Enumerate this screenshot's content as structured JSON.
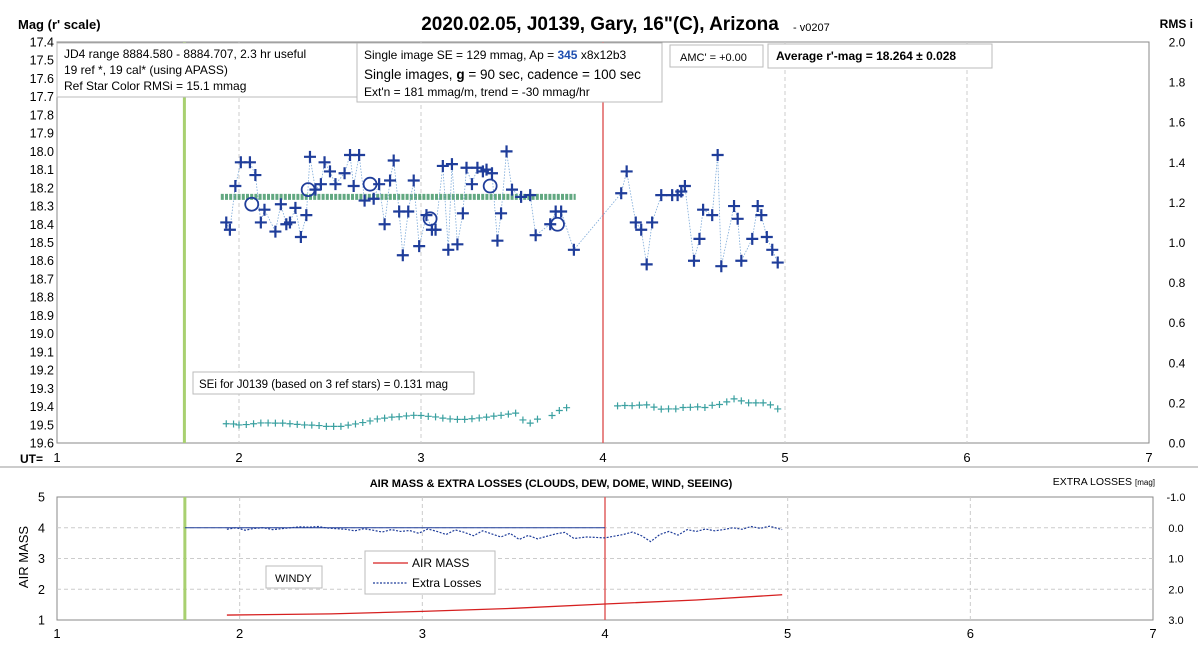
{
  "title": "2020.02.05, J0139, Gary, 16\"(C), Arizona",
  "version": "- v0207",
  "colors": {
    "mag_marker": "#1f3d9a",
    "trend": "#2e8b57",
    "sei_marker": "#3aa0a0",
    "airmass_line": "#d62020",
    "extra_losses": "#1f3d9a",
    "meridian": "#e06060",
    "start_marker": "#a8d070",
    "grid": "#cccccc"
  },
  "info_boxes": {
    "jd_range": "JD4 range 8884.580 - 8884.707, 2.3 hr useful",
    "ref_cal": "19 ref *, 19 cal* (using APASS)",
    "ref_color_rms": "Ref Star Color RMSi = 15.1 mmag",
    "single_se_prefix": "Single image SE = 129 mmag, Ap = ",
    "aperture": "345",
    "aperture_suffix": " x8x12b3",
    "single_images": "Single images, ",
    "filter_letter": "g",
    "exposure": " = 90 sec, cadence = 100 sec",
    "extinction": "Ext'n = 181 mmag/m, trend = -30 mmag/hr",
    "amc": "AMC' = +0.00",
    "average": "Average r'-mag =  18.264 ± 0.028",
    "sei": "SEi for J0139 (based on 3 ref stars) = 0.131 mag",
    "windy": "WINDY"
  },
  "chart_data": [
    {
      "type": "scatter",
      "title": "2020.02.05, J0139, Gary, 16\"(C), Arizona",
      "ylabel": "Mag (r' scale)",
      "y2label": "RMS i",
      "xlabel": "UT=",
      "xlim": [
        1,
        7
      ],
      "ylim": [
        17.4,
        19.6
      ],
      "y_inverted": true,
      "y2lim": [
        0,
        2.0
      ],
      "x_ticks": [
        "1",
        "2",
        "3",
        "4",
        "5",
        "6",
        "7"
      ],
      "y_ticks": [
        "17.4",
        "17.5",
        "17.6",
        "17.7",
        "17.8",
        "17.9",
        "18.0",
        "18.1",
        "18.2",
        "18.3",
        "18.4",
        "18.5",
        "18.6",
        "18.7",
        "18.8",
        "18.9",
        "19.0",
        "19.1",
        "19.2",
        "19.3",
        "19.4",
        "19.5",
        "19.6"
      ],
      "y2_ticks": [
        "0.0",
        "0.2",
        "0.4",
        "0.6",
        "0.8",
        "1.0",
        "1.2",
        "1.4",
        "1.6",
        "1.8",
        "2.0"
      ],
      "grid": true,
      "start_marker_x": 1.7,
      "meridian_x": 4.0,
      "trend_line": {
        "x": [
          1.9,
          3.85
        ],
        "y": 18.25
      },
      "series": [
        {
          "kind": "single-image-mag",
          "points": [
            [
              1.93,
              18.39
            ],
            [
              1.95,
              18.43
            ],
            [
              1.98,
              18.19
            ],
            [
              2.01,
              18.06
            ],
            [
              2.06,
              18.06
            ],
            [
              2.09,
              18.13
            ],
            [
              2.12,
              18.39
            ],
            [
              2.14,
              18.32
            ],
            [
              2.2,
              18.44
            ],
            [
              2.23,
              18.29
            ],
            [
              2.26,
              18.4
            ],
            [
              2.28,
              18.39
            ],
            [
              2.31,
              18.31
            ],
            [
              2.34,
              18.47
            ],
            [
              2.37,
              18.35
            ],
            [
              2.39,
              18.03
            ],
            [
              2.42,
              18.21
            ],
            [
              2.45,
              18.18
            ],
            [
              2.47,
              18.06
            ],
            [
              2.5,
              18.11
            ],
            [
              2.53,
              18.18
            ],
            [
              2.58,
              18.12
            ],
            [
              2.61,
              18.02
            ],
            [
              2.63,
              18.19
            ],
            [
              2.66,
              18.02
            ],
            [
              2.69,
              18.27
            ],
            [
              2.74,
              18.26
            ],
            [
              2.77,
              18.18
            ],
            [
              2.8,
              18.4
            ],
            [
              2.83,
              18.16
            ],
            [
              2.85,
              18.05
            ],
            [
              2.88,
              18.33
            ],
            [
              2.9,
              18.57
            ],
            [
              2.93,
              18.33
            ],
            [
              2.96,
              18.16
            ],
            [
              2.99,
              18.52
            ],
            [
              3.03,
              18.35
            ],
            [
              3.06,
              18.43
            ],
            [
              3.08,
              18.43
            ],
            [
              3.12,
              18.08
            ],
            [
              3.15,
              18.54
            ],
            [
              3.17,
              18.07
            ],
            [
              3.2,
              18.51
            ],
            [
              3.23,
              18.34
            ],
            [
              3.25,
              18.09
            ],
            [
              3.28,
              18.18
            ],
            [
              3.31,
              18.09
            ],
            [
              3.34,
              18.11
            ],
            [
              3.36,
              18.1
            ],
            [
              3.39,
              18.12
            ],
            [
              3.42,
              18.49
            ],
            [
              3.44,
              18.34
            ],
            [
              3.47,
              18.0
            ],
            [
              3.5,
              18.21
            ],
            [
              3.55,
              18.25
            ],
            [
              3.6,
              18.24
            ],
            [
              3.63,
              18.46
            ],
            [
              3.71,
              18.4
            ],
            [
              3.74,
              18.33
            ],
            [
              3.77,
              18.33
            ],
            [
              3.84,
              18.54
            ],
            [
              4.1,
              18.23
            ],
            [
              4.13,
              18.11
            ],
            [
              4.18,
              18.39
            ],
            [
              4.21,
              18.43
            ],
            [
              4.24,
              18.62
            ],
            [
              4.27,
              18.39
            ],
            [
              4.32,
              18.24
            ],
            [
              4.38,
              18.24
            ],
            [
              4.41,
              18.24
            ],
            [
              4.43,
              18.22
            ],
            [
              4.45,
              18.19
            ],
            [
              4.5,
              18.6
            ],
            [
              4.53,
              18.48
            ],
            [
              4.55,
              18.32
            ],
            [
              4.6,
              18.35
            ],
            [
              4.63,
              18.02
            ],
            [
              4.65,
              18.63
            ],
            [
              4.72,
              18.3
            ],
            [
              4.74,
              18.37
            ],
            [
              4.76,
              18.6
            ],
            [
              4.82,
              18.48
            ],
            [
              4.85,
              18.3
            ],
            [
              4.87,
              18.35
            ],
            [
              4.9,
              18.47
            ],
            [
              4.93,
              18.54
            ],
            [
              4.96,
              18.61
            ]
          ]
        },
        {
          "kind": "averaged-mag",
          "points": [
            [
              2.07,
              18.29
            ],
            [
              2.38,
              18.21
            ],
            [
              2.72,
              18.18
            ],
            [
              3.05,
              18.37
            ],
            [
              3.38,
              18.19
            ],
            [
              3.75,
              18.4
            ]
          ]
        },
        {
          "kind": "sei-rms",
          "axis": "y2",
          "points": [
            [
              1.93,
              0.096
            ],
            [
              1.97,
              0.095
            ],
            [
              2.0,
              0.09
            ],
            [
              2.04,
              0.092
            ],
            [
              2.08,
              0.096
            ],
            [
              2.12,
              0.1
            ],
            [
              2.16,
              0.1
            ],
            [
              2.2,
              0.099
            ],
            [
              2.24,
              0.099
            ],
            [
              2.28,
              0.096
            ],
            [
              2.32,
              0.093
            ],
            [
              2.36,
              0.09
            ],
            [
              2.4,
              0.089
            ],
            [
              2.44,
              0.087
            ],
            [
              2.48,
              0.083
            ],
            [
              2.52,
              0.083
            ],
            [
              2.56,
              0.083
            ],
            [
              2.6,
              0.089
            ],
            [
              2.64,
              0.095
            ],
            [
              2.68,
              0.102
            ],
            [
              2.72,
              0.11
            ],
            [
              2.76,
              0.12
            ],
            [
              2.8,
              0.124
            ],
            [
              2.84,
              0.129
            ],
            [
              2.88,
              0.131
            ],
            [
              2.92,
              0.135
            ],
            [
              2.96,
              0.138
            ],
            [
              3.0,
              0.137
            ],
            [
              3.04,
              0.133
            ],
            [
              3.08,
              0.13
            ],
            [
              3.12,
              0.124
            ],
            [
              3.16,
              0.12
            ],
            [
              3.2,
              0.118
            ],
            [
              3.24,
              0.118
            ],
            [
              3.28,
              0.121
            ],
            [
              3.32,
              0.125
            ],
            [
              3.36,
              0.129
            ],
            [
              3.4,
              0.134
            ],
            [
              3.44,
              0.138
            ],
            [
              3.48,
              0.144
            ],
            [
              3.52,
              0.149
            ],
            [
              3.56,
              0.115
            ],
            [
              3.6,
              0.099
            ],
            [
              3.64,
              0.119
            ],
            [
              3.72,
              0.137
            ],
            [
              3.76,
              0.162
            ],
            [
              3.8,
              0.176
            ],
            [
              4.08,
              0.185
            ],
            [
              4.12,
              0.187
            ],
            [
              4.16,
              0.186
            ],
            [
              4.2,
              0.189
            ],
            [
              4.24,
              0.19
            ],
            [
              4.28,
              0.179
            ],
            [
              4.32,
              0.169
            ],
            [
              4.36,
              0.17
            ],
            [
              4.4,
              0.17
            ],
            [
              4.44,
              0.177
            ],
            [
              4.48,
              0.178
            ],
            [
              4.52,
              0.18
            ],
            [
              4.56,
              0.177
            ],
            [
              4.6,
              0.188
            ],
            [
              4.64,
              0.192
            ],
            [
              4.68,
              0.205
            ],
            [
              4.72,
              0.22
            ],
            [
              4.76,
              0.21
            ],
            [
              4.8,
              0.2
            ],
            [
              4.84,
              0.2
            ],
            [
              4.88,
              0.2
            ],
            [
              4.92,
              0.19
            ],
            [
              4.96,
              0.17
            ]
          ]
        }
      ]
    },
    {
      "type": "line",
      "title": "AIR MASS & EXTRA LOSSES (CLOUDS, DEW, DOME, WIND, SEEING)",
      "ylabel": "AIR MASS",
      "y2label": "EXTRA LOSSES",
      "y2unit": "[mag]",
      "xlim": [
        1,
        7
      ],
      "ylim": [
        1,
        5
      ],
      "y2lim": [
        -1.0,
        3.0
      ],
      "y2_inverted": true,
      "x_ticks": [
        "1",
        "2",
        "3",
        "4",
        "5",
        "6",
        "7"
      ],
      "y_ticks": [
        "1",
        "2",
        "3",
        "4",
        "5"
      ],
      "y2_ticks": [
        "-1.0",
        "0.0",
        "1.0",
        "2.0",
        "3.0"
      ],
      "grid": true,
      "start_marker_x": 1.7,
      "meridian_x": 4.0,
      "legend": {
        "position": "center-left",
        "entries": [
          "AIR MASS",
          "Extra Losses"
        ]
      },
      "zero_reference_line": {
        "x": [
          1.7,
          4.0
        ],
        "y": 4.0
      },
      "series": [
        {
          "name": "AIR MASS",
          "x": [
            1.93,
            2.5,
            3.0,
            3.5,
            4.0,
            4.5,
            4.97
          ],
          "values": [
            1.16,
            1.2,
            1.28,
            1.38,
            1.52,
            1.65,
            1.82
          ]
        },
        {
          "name": "Extra Losses",
          "x": [
            1.93,
            1.98,
            2.03,
            2.08,
            2.13,
            2.18,
            2.23,
            2.28,
            2.33,
            2.38,
            2.43,
            2.48,
            2.53,
            2.58,
            2.63,
            2.68,
            2.73,
            2.78,
            2.83,
            2.88,
            2.93,
            2.98,
            3.03,
            3.08,
            3.13,
            3.18,
            3.23,
            3.28,
            3.33,
            3.38,
            3.43,
            3.48,
            3.53,
            3.58,
            3.63,
            3.68,
            3.73,
            3.78,
            3.83,
            3.9,
            4.0,
            4.1,
            4.15,
            4.2,
            4.25,
            4.3,
            4.35,
            4.4,
            4.45,
            4.5,
            4.55,
            4.6,
            4.65,
            4.7,
            4.75,
            4.8,
            4.85,
            4.9,
            4.97
          ],
          "values": [
            0.05,
            0.0,
            0.08,
            0.02,
            0.0,
            0.06,
            0.03,
            0.0,
            -0.03,
            -0.02,
            -0.04,
            0.01,
            0.03,
            0.05,
            0.1,
            0.03,
            0.08,
            0.14,
            0.06,
            0.12,
            0.09,
            0.18,
            0.04,
            0.12,
            0.22,
            0.07,
            0.15,
            0.26,
            0.1,
            0.2,
            0.3,
            0.18,
            0.38,
            0.25,
            0.36,
            0.28,
            0.2,
            0.15,
            0.35,
            0.3,
            0.33,
            0.22,
            0.14,
            0.26,
            0.45,
            0.22,
            0.12,
            0.24,
            0.06,
            0.12,
            0.04,
            0.1,
            0.06,
            0.0,
            0.05,
            -0.04,
            0.02,
            -0.05,
            0.06
          ]
        }
      ]
    }
  ]
}
